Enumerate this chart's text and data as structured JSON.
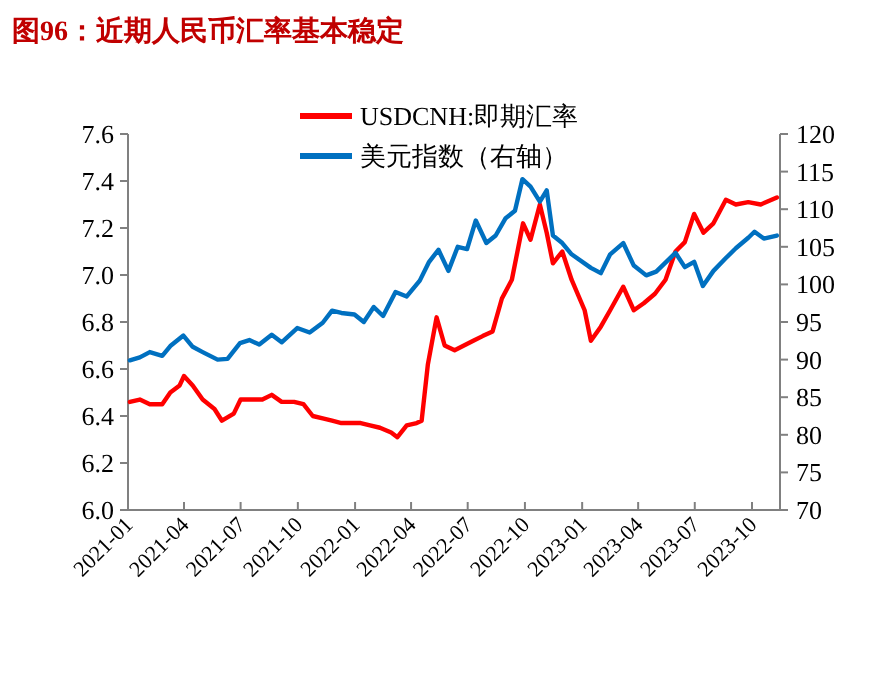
{
  "chart_data": {
    "type": "line",
    "title": "图96：近期人民币汇率基本稳定",
    "legend": "top",
    "grid": false,
    "line_style": "solid",
    "marker": "none",
    "xlim": [
      "2021-01-01",
      "2023-11-15"
    ],
    "xticks": [
      "2021-01",
      "2021-04",
      "2021-07",
      "2021-10",
      "2022-01",
      "2022-04",
      "2022-07",
      "2022-10",
      "2023-01",
      "2023-04",
      "2023-07",
      "2023-10"
    ],
    "ylim": [
      6.0,
      7.6
    ],
    "yticks": [
      {
        "value": 6.0,
        "label": "6.0"
      },
      {
        "value": 6.2,
        "label": "6.2"
      },
      {
        "value": 6.4,
        "label": "6.4"
      },
      {
        "value": 6.6,
        "label": "6.6"
      },
      {
        "value": 6.8,
        "label": "6.8"
      },
      {
        "value": 7.0,
        "label": "7.0"
      },
      {
        "value": 7.2,
        "label": "7.2"
      },
      {
        "value": 7.4,
        "label": "7.4"
      },
      {
        "value": 7.6,
        "label": "7.6"
      }
    ],
    "y2lim": [
      70,
      120
    ],
    "y2ticks": [
      70,
      75,
      80,
      85,
      90,
      95,
      100,
      105,
      110,
      115,
      120
    ],
    "series": [
      {
        "name": "USDCNH:即期汇率",
        "color": "#ff0000",
        "x": [
          "2021-01-04",
          "2021-01-20",
          "2021-02-05",
          "2021-02-25",
          "2021-03-10",
          "2021-03-25",
          "2021-04-01",
          "2021-04-15",
          "2021-05-01",
          "2021-05-20",
          "2021-06-01",
          "2021-06-20",
          "2021-07-01",
          "2021-07-20",
          "2021-08-05",
          "2021-08-20",
          "2021-09-05",
          "2021-09-25",
          "2021-10-10",
          "2021-10-25",
          "2021-11-10",
          "2021-11-25",
          "2021-12-10",
          "2021-12-25",
          "2022-01-10",
          "2022-01-25",
          "2022-02-10",
          "2022-02-28",
          "2022-03-10",
          "2022-03-25",
          "2022-04-10",
          "2022-04-18",
          "2022-04-28",
          "2022-05-12",
          "2022-05-25",
          "2022-06-10",
          "2022-06-25",
          "2022-07-10",
          "2022-07-25",
          "2022-08-10",
          "2022-08-25",
          "2022-09-10",
          "2022-09-28",
          "2022-10-10",
          "2022-10-25",
          "2022-11-05",
          "2022-11-15",
          "2022-11-30",
          "2022-12-15",
          "2023-01-05",
          "2023-01-15",
          "2023-01-31",
          "2023-02-15",
          "2023-03-08",
          "2023-03-25",
          "2023-04-10",
          "2023-04-28",
          "2023-05-15",
          "2023-05-31",
          "2023-06-15",
          "2023-06-30",
          "2023-07-15",
          "2023-07-31",
          "2023-08-20",
          "2023-09-05",
          "2023-09-25",
          "2023-10-15",
          "2023-11-10"
        ],
        "values": [
          6.46,
          6.47,
          6.45,
          6.45,
          6.5,
          6.53,
          6.57,
          6.53,
          6.47,
          6.43,
          6.38,
          6.41,
          6.47,
          6.47,
          6.47,
          6.49,
          6.46,
          6.46,
          6.45,
          6.4,
          6.39,
          6.38,
          6.37,
          6.37,
          6.37,
          6.36,
          6.35,
          6.33,
          6.31,
          6.36,
          6.37,
          6.38,
          6.62,
          6.82,
          6.7,
          6.68,
          6.7,
          6.72,
          6.74,
          6.76,
          6.9,
          6.98,
          7.22,
          7.15,
          7.3,
          7.18,
          7.05,
          7.1,
          6.98,
          6.85,
          6.72,
          6.78,
          6.85,
          6.95,
          6.85,
          6.88,
          6.92,
          6.98,
          7.1,
          7.14,
          7.26,
          7.18,
          7.22,
          7.32,
          7.3,
          7.31,
          7.3,
          7.33
        ]
      },
      {
        "name": "美元指数（右轴）",
        "color": "#0070c0",
        "axis": "y2",
        "x": [
          "2021-01-04",
          "2021-01-20",
          "2021-02-05",
          "2021-02-25",
          "2021-03-10",
          "2021-03-31",
          "2021-04-15",
          "2021-05-01",
          "2021-05-25",
          "2021-06-10",
          "2021-06-30",
          "2021-07-15",
          "2021-07-31",
          "2021-08-20",
          "2021-09-05",
          "2021-09-30",
          "2021-10-20",
          "2021-11-10",
          "2021-11-25",
          "2021-12-10",
          "2021-12-31",
          "2022-01-15",
          "2022-01-31",
          "2022-02-15",
          "2022-03-07",
          "2022-03-25",
          "2022-04-15",
          "2022-04-30",
          "2022-05-15",
          "2022-05-31",
          "2022-06-15",
          "2022-06-30",
          "2022-07-14",
          "2022-07-31",
          "2022-08-15",
          "2022-08-31",
          "2022-09-15",
          "2022-09-27",
          "2022-10-10",
          "2022-10-25",
          "2022-11-05",
          "2022-11-15",
          "2022-11-30",
          "2022-12-15",
          "2023-01-15",
          "2023-01-31",
          "2023-02-15",
          "2023-03-08",
          "2023-03-25",
          "2023-04-14",
          "2023-04-30",
          "2023-05-31",
          "2023-06-15",
          "2023-06-30",
          "2023-07-14",
          "2023-07-31",
          "2023-08-20",
          "2023-09-05",
          "2023-09-25",
          "2023-10-05",
          "2023-10-20",
          "2023-11-10"
        ],
        "values": [
          89.9,
          90.3,
          91,
          90.5,
          91.8,
          93.2,
          91.7,
          91,
          90,
          90.1,
          92.2,
          92.6,
          92,
          93.3,
          92.3,
          94.2,
          93.6,
          94.9,
          96.5,
          96.2,
          96,
          95,
          97,
          95.8,
          99,
          98.4,
          100.5,
          103,
          104.6,
          101.8,
          105,
          104.7,
          108.5,
          105.5,
          106.5,
          108.8,
          109.8,
          114,
          113,
          111,
          112.5,
          106.5,
          105.5,
          104,
          102.2,
          101.5,
          104,
          105.5,
          102.5,
          101.2,
          101.7,
          104.2,
          102.3,
          103,
          99.8,
          101.8,
          103.5,
          104.8,
          106.2,
          107,
          106.1,
          106.5
        ]
      }
    ]
  }
}
